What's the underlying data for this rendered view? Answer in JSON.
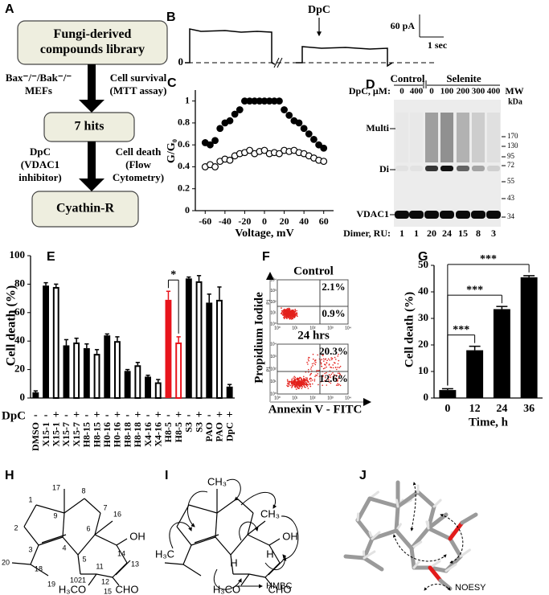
{
  "panel_labels": [
    "A",
    "B",
    "C",
    "D",
    "E",
    "F",
    "G",
    "H",
    "I",
    "J"
  ],
  "panel_a": {
    "boxes": [
      [
        "Fungi-derived",
        "compounds library"
      ],
      [
        "7 hits"
      ],
      [
        "Cyathin-R"
      ]
    ],
    "notes": [
      [
        "Bax⁻/⁻/Bak⁻/⁻",
        "MEFs"
      ],
      [
        "Cell survival",
        "(MTT assay)"
      ],
      [
        "DpC",
        "(VDAC1",
        "inhibitor)"
      ],
      [
        "Cell death",
        "(Flow",
        "Cytometry)"
      ]
    ]
  },
  "panel_b": {
    "treatment": "DpC",
    "zero": "0",
    "scale_current": "60 pA",
    "scale_time": "1 sec"
  },
  "panel_d": {
    "groups": [
      "Control",
      "Selenite"
    ],
    "dose_label": "DpC, μM:",
    "doses": [
      0,
      400,
      0,
      100,
      200,
      300,
      400
    ],
    "mw_label": [
      "MW",
      "kDa"
    ],
    "bands": [
      "Multi",
      "Di",
      "VDAC1"
    ],
    "mw": [
      170,
      130,
      95,
      72,
      55,
      43,
      34
    ],
    "dimer_label": "Dimer, RU:",
    "dimer": [
      1,
      1,
      20,
      24,
      15,
      8,
      3
    ]
  },
  "panel_f": {
    "titles": [
      "Control",
      "24 hrs"
    ],
    "quadrants": [
      [
        "2.1%",
        "0.9%"
      ],
      [
        "20.3%",
        "12.6%"
      ]
    ],
    "ylabel": "Propidium Iodide",
    "xlabel": "Annexin V - FITC",
    "gate": "P1",
    "axis_ticks": [
      "10⁰",
      "10¹",
      "10²",
      "10³",
      "10⁴"
    ]
  },
  "panel_h": {
    "atoms": [
      "1",
      "2",
      "3",
      "4",
      "5",
      "6",
      "7",
      "8",
      "9",
      "10",
      "11",
      "12",
      "13",
      "14",
      "15",
      "16",
      "17",
      "18",
      "19",
      "20",
      "21"
    ],
    "groups": [
      "OH",
      "H₃CO",
      "CHO"
    ]
  },
  "panel_i": {
    "groups": [
      "CH₃",
      "CH₃",
      "OH",
      "H₃C",
      "H",
      "H",
      "CHO",
      "H₃CO"
    ],
    "legend": "HMBC"
  },
  "panel_j": {
    "legend": "NOESY"
  },
  "chart_data": [
    {
      "type": "scatter",
      "xlabel": "Voltage, mV",
      "ylabel": "G/G₀",
      "x": [
        -60,
        -55,
        -50,
        -45,
        -40,
        -35,
        -30,
        -25,
        -20,
        -15,
        -10,
        -5,
        0,
        5,
        10,
        15,
        20,
        25,
        30,
        35,
        40,
        45,
        50,
        55,
        60
      ],
      "series": [
        {
          "color": "#000000",
          "filled": true,
          "values": [
            0.62,
            0.6,
            0.64,
            0.75,
            0.8,
            0.82,
            0.88,
            0.92,
            1.0,
            1.0,
            1.0,
            1.0,
            1.0,
            1.0,
            1.0,
            1.0,
            0.92,
            0.87,
            0.82,
            0.8,
            0.75,
            0.7,
            0.65,
            0.6,
            0.57
          ]
        },
        {
          "color": "#000000",
          "filled": false,
          "values": [
            0.4,
            0.42,
            0.4,
            0.45,
            0.47,
            0.46,
            0.5,
            0.52,
            0.53,
            0.55,
            0.52,
            0.54,
            0.55,
            0.52,
            0.53,
            0.52,
            0.55,
            0.54,
            0.55,
            0.53,
            0.52,
            0.5,
            0.48,
            0.46,
            0.45
          ]
        }
      ],
      "xlim": [
        -70,
        70
      ],
      "ylim": [
        0,
        1.1
      ],
      "xticks": [
        -60,
        -40,
        -20,
        0,
        20,
        40,
        60
      ],
      "yticks": [
        0,
        0.2,
        0.4,
        0.6,
        0.8,
        1
      ]
    },
    {
      "type": "bar",
      "ylabel": "Cell death (%)",
      "categories": [
        "DMSO",
        "X15-1",
        "X15-1",
        "X15-7",
        "X15-7",
        "H8-15",
        "H8-15",
        "H0-16",
        "H0-16",
        "H8-18",
        "H8-18",
        "X4-16",
        "X4-16",
        "H8-5",
        "H8-5",
        "S3",
        "S3",
        "PAO",
        "PAO",
        "DpC"
      ],
      "values": [
        4,
        79,
        78,
        37,
        39,
        35,
        31,
        44,
        40,
        19,
        23,
        15,
        11,
        69,
        39,
        84,
        82,
        67,
        69,
        8
      ],
      "errors": [
        1,
        2,
        2,
        4,
        3,
        3,
        3,
        1,
        3,
        1,
        2,
        1,
        2,
        6,
        4,
        1,
        4,
        6,
        9,
        1.5
      ],
      "filled": [
        true,
        true,
        false,
        true,
        false,
        true,
        false,
        true,
        false,
        true,
        false,
        true,
        false,
        true,
        false,
        true,
        false,
        true,
        false,
        true
      ],
      "colors": [
        "#000000",
        "#000000",
        "#000000",
        "#000000",
        "#000000",
        "#000000",
        "#000000",
        "#000000",
        "#000000",
        "#000000",
        "#000000",
        "#000000",
        "#000000",
        "#e8141c",
        "#e8141c",
        "#000000",
        "#000000",
        "#000000",
        "#000000",
        "#000000"
      ],
      "treatment_label": "DpC",
      "treatment": [
        "-",
        "-",
        "+",
        "-",
        "+",
        "-",
        "+",
        "-",
        "+",
        "-",
        "+",
        "-",
        "+",
        "-",
        "+",
        "-",
        "+",
        "-",
        "+",
        "+"
      ],
      "annotations": [
        {
          "text": "*",
          "from": 13,
          "to": 14
        }
      ],
      "ylim": [
        0,
        100
      ],
      "yticks": [
        0,
        20,
        40,
        60,
        80,
        100
      ]
    },
    {
      "type": "bar",
      "ylabel": "Cell death (%)",
      "xlabel": "Time, h",
      "categories": [
        "0",
        "12",
        "24",
        "36"
      ],
      "values": [
        3,
        18,
        33.5,
        45.5
      ],
      "errors": [
        0.5,
        1.5,
        1,
        0.6
      ],
      "color": "#000000",
      "annotations": [
        {
          "text": "***",
          "from": 0,
          "to": 1
        },
        {
          "text": "***",
          "from": 0,
          "to": 2
        },
        {
          "text": "***",
          "from": 0,
          "to": 3
        }
      ],
      "ylim": [
        0,
        50
      ],
      "yticks": [
        0,
        10,
        20,
        30,
        40,
        50
      ]
    }
  ]
}
